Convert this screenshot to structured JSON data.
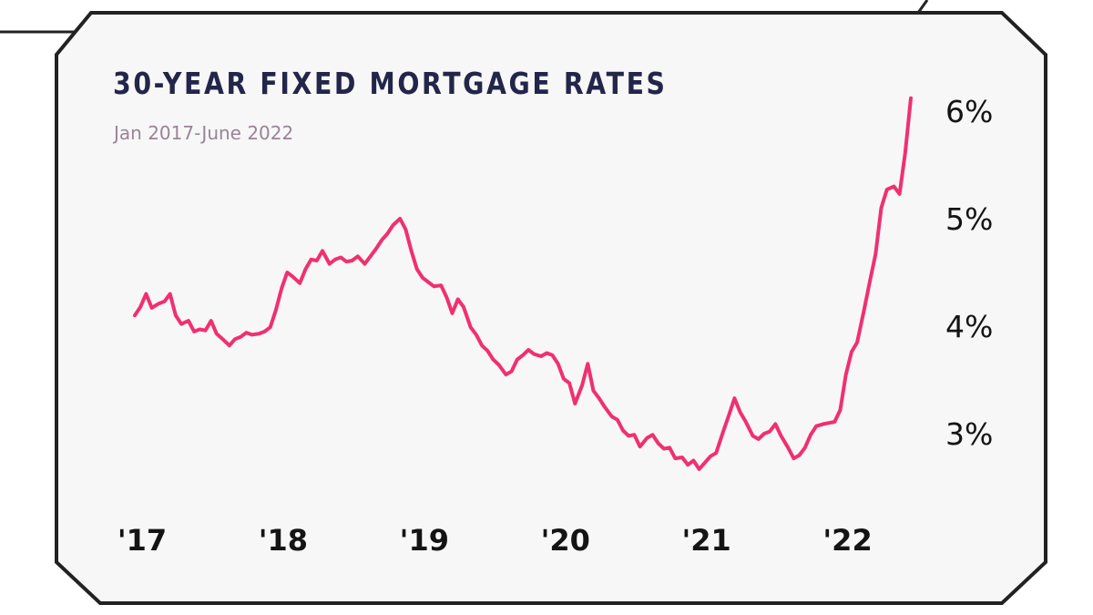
{
  "colors": {
    "line": "#f0306f",
    "card": "#f7f7f7",
    "border": "#222222",
    "title": "#23264a",
    "subtitle": "#9a8498",
    "tick": "#141414"
  },
  "chart_data": {
    "type": "line",
    "title": "30-YEAR FIXED MORTGAGE RATES",
    "subtitle": "Jan 2017-June 2022",
    "xlabel": "",
    "ylabel": "",
    "x_ticks": [
      {
        "label": "'17",
        "value": 2017.0
      },
      {
        "label": "'18",
        "value": 2018.0
      },
      {
        "label": "'19",
        "value": 2019.0
      },
      {
        "label": "'20",
        "value": 2020.0
      },
      {
        "label": "'21",
        "value": 2021.0
      },
      {
        "label": "'22",
        "value": 2022.0
      }
    ],
    "y_ticks": [
      {
        "label": "3%",
        "value": 3
      },
      {
        "label": "4%",
        "value": 4
      },
      {
        "label": "5%",
        "value": 5
      },
      {
        "label": "6%",
        "value": 6
      }
    ],
    "xlim": [
      2017.0,
      2022.5
    ],
    "ylim": [
      2.7,
      6.2
    ],
    "grid": false,
    "series": [
      {
        "x": [
          2017.0,
          2017.04,
          2017.08,
          2017.12,
          2017.17,
          2017.21,
          2017.25,
          2017.29,
          2017.33,
          2017.38,
          2017.42,
          2017.46,
          2017.5,
          2017.54,
          2017.58,
          2017.63,
          2017.67,
          2017.71,
          2017.75,
          2017.79,
          2017.83,
          2017.88,
          2017.92,
          2017.96,
          2018.0,
          2018.04,
          2018.08,
          2018.12,
          2018.17,
          2018.21,
          2018.25,
          2018.29,
          2018.33,
          2018.38,
          2018.42,
          2018.46,
          2018.5,
          2018.54,
          2018.58,
          2018.63,
          2018.67,
          2018.71,
          2018.75,
          2018.79,
          2018.83,
          2018.88,
          2018.92,
          2018.96,
          2019.0,
          2019.04,
          2019.08,
          2019.12,
          2019.17,
          2019.21,
          2019.25,
          2019.29,
          2019.33,
          2019.38,
          2019.42,
          2019.46,
          2019.5,
          2019.54,
          2019.58,
          2019.63,
          2019.67,
          2019.71,
          2019.75,
          2019.79,
          2019.83,
          2019.88,
          2019.92,
          2019.96,
          2020.0,
          2020.04,
          2020.08,
          2020.12,
          2020.17,
          2020.21,
          2020.25,
          2020.29,
          2020.33,
          2020.38,
          2020.42,
          2020.46,
          2020.5,
          2020.54,
          2020.58,
          2020.63,
          2020.67,
          2020.71,
          2020.75,
          2020.79,
          2020.83,
          2020.88,
          2020.92,
          2020.96,
          2021.0,
          2021.04,
          2021.08,
          2021.12,
          2021.17,
          2021.21,
          2021.25,
          2021.29,
          2021.33,
          2021.38,
          2021.42,
          2021.46,
          2021.5,
          2021.54,
          2021.58,
          2021.63,
          2021.67,
          2021.71,
          2021.75,
          2021.79,
          2021.83,
          2021.88,
          2021.92,
          2021.96,
          2022.0,
          2022.04,
          2022.08,
          2022.12,
          2022.17,
          2022.21,
          2022.25,
          2022.29,
          2022.33,
          2022.38,
          2022.42,
          2022.46,
          2022.5
        ],
        "y": [
          4.1,
          4.18,
          4.3,
          4.17,
          4.21,
          4.23,
          4.3,
          4.1,
          4.02,
          4.05,
          3.95,
          3.97,
          3.96,
          4.05,
          3.93,
          3.87,
          3.82,
          3.88,
          3.9,
          3.94,
          3.92,
          3.93,
          3.95,
          3.99,
          4.15,
          4.35,
          4.5,
          4.46,
          4.4,
          4.53,
          4.62,
          4.61,
          4.7,
          4.58,
          4.62,
          4.64,
          4.6,
          4.61,
          4.65,
          4.58,
          4.65,
          4.72,
          4.8,
          4.86,
          4.94,
          5.0,
          4.9,
          4.7,
          4.53,
          4.45,
          4.41,
          4.37,
          4.38,
          4.27,
          4.12,
          4.25,
          4.18,
          3.99,
          3.92,
          3.82,
          3.77,
          3.69,
          3.64,
          3.55,
          3.58,
          3.69,
          3.73,
          3.78,
          3.74,
          3.72,
          3.75,
          3.73,
          3.65,
          3.51,
          3.47,
          3.28,
          3.45,
          3.65,
          3.4,
          3.33,
          3.25,
          3.16,
          3.13,
          3.03,
          2.98,
          2.99,
          2.88,
          2.96,
          2.99,
          2.91,
          2.86,
          2.87,
          2.77,
          2.78,
          2.71,
          2.75,
          2.67,
          2.73,
          2.79,
          2.82,
          3.02,
          3.17,
          3.33,
          3.2,
          3.11,
          2.98,
          2.95,
          3.0,
          3.02,
          3.09,
          2.98,
          2.87,
          2.77,
          2.8,
          2.87,
          2.99,
          3.07,
          3.09,
          3.1,
          3.11,
          3.22,
          3.55,
          3.76,
          3.85,
          4.16,
          4.42,
          4.67,
          5.1,
          5.27,
          5.3,
          5.23,
          5.61,
          6.12
        ]
      }
    ]
  }
}
